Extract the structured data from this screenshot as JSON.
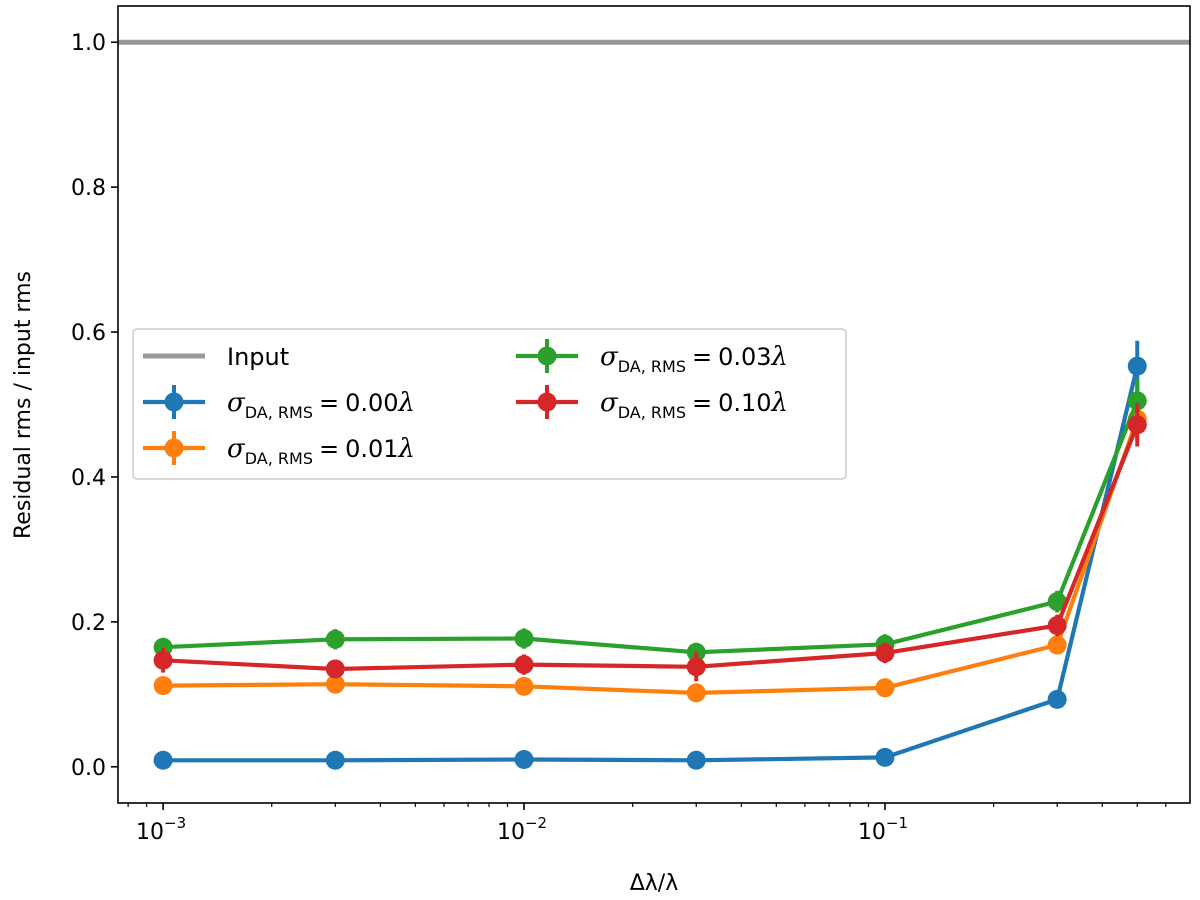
{
  "chart_data": {
    "type": "line",
    "title": "",
    "xlabel": "Δλ/λ",
    "ylabel": "Residual rms / input rms",
    "xscale": "log",
    "xlim": [
      0.00075,
      0.7
    ],
    "ylim": [
      -0.05,
      1.05
    ],
    "x": [
      0.001,
      0.003,
      0.01,
      0.03,
      0.1,
      0.3,
      0.5
    ],
    "x_ticks": [
      {
        "value": 0.001,
        "base": "10",
        "exp": "−3"
      },
      {
        "value": 0.01,
        "base": "10",
        "exp": "−2"
      },
      {
        "value": 0.1,
        "base": "10",
        "exp": "−1"
      }
    ],
    "y_ticks": [
      {
        "value": 0.0,
        "label": "0.0"
      },
      {
        "value": 0.2,
        "label": "0.2"
      },
      {
        "value": 0.4,
        "label": "0.4"
      },
      {
        "value": 0.6,
        "label": "0.6"
      },
      {
        "value": 0.8,
        "label": "0.8"
      },
      {
        "value": 1.0,
        "label": "1.0"
      }
    ],
    "reference_line": {
      "name": "Input",
      "value": 1.0,
      "color": "#999999"
    },
    "series": [
      {
        "name": "σDA,RMS = 0.00λ",
        "sigma_value": "0.00",
        "color": "#1f77b4",
        "values": [
          0.009,
          0.009,
          0.01,
          0.009,
          0.013,
          0.093,
          0.553
        ],
        "errors": [
          0.004,
          0.004,
          0.004,
          0.004,
          0.005,
          0.008,
          0.035
        ]
      },
      {
        "name": "σDA,RMS = 0.01λ",
        "sigma_value": "0.01",
        "color": "#ff7f0e",
        "values": [
          0.112,
          0.114,
          0.111,
          0.102,
          0.109,
          0.168,
          0.48
        ],
        "errors": [
          0.008,
          0.008,
          0.008,
          0.008,
          0.008,
          0.01,
          0.03
        ]
      },
      {
        "name": "σDA,RMS = 0.03λ",
        "sigma_value": "0.03",
        "color": "#2ca02c",
        "values": [
          0.165,
          0.176,
          0.177,
          0.158,
          0.169,
          0.228,
          0.505
        ],
        "errors": [
          0.012,
          0.014,
          0.014,
          0.01,
          0.014,
          0.015,
          0.03
        ]
      },
      {
        "name": "σDA,RMS = 0.10λ",
        "sigma_value": "0.10",
        "color": "#d62728",
        "values": [
          0.147,
          0.135,
          0.141,
          0.138,
          0.157,
          0.195,
          0.472
        ],
        "errors": [
          0.017,
          0.012,
          0.014,
          0.02,
          0.014,
          0.015,
          0.03
        ]
      }
    ],
    "legend": {
      "position": "center-left",
      "ncol": 2,
      "sigma_symbol": "σ",
      "sigma_subscript": "DA, RMS",
      "lambda_symbol": "λ",
      "equals": "="
    },
    "grid": false
  }
}
